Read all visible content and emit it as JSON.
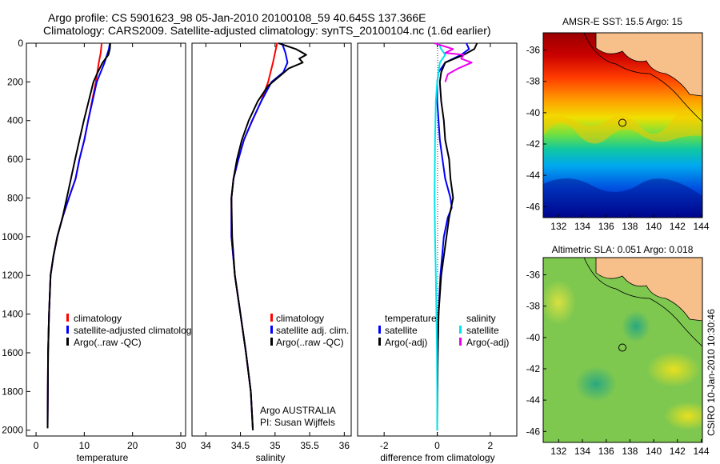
{
  "figure": {
    "title_line1": "Argo profile: CS 5901623_98 05-Jan-2010 20100108_59 40.645S 137.366E",
    "title_line2": "Climatology: CARS2009. Satellite-adjusted climatology: synTS_20100104.nc (1.6d earlier)",
    "side_caption": "CSIRO 10-Jan-2010 10:30:46",
    "credit_line1": "Argo AUSTRALIA",
    "credit_line2": "PI: Susan Wijffels"
  },
  "colors": {
    "climatology": "#ff0000",
    "satellite": "#0000ff",
    "argo": "#000000",
    "salinity_satellite": "#00e5ee",
    "salinity_argo": "#ee00ee",
    "land": "#f7c08a"
  },
  "chart_data": [
    {
      "type": "line",
      "id": "temperature",
      "title": "",
      "xlabel": "temperature",
      "ylabel": "",
      "xlim": [
        -2,
        31
      ],
      "ylim": [
        2030,
        0
      ],
      "y_reversed": true,
      "xticks": [
        0,
        10,
        20,
        30
      ],
      "yticks": [
        0,
        200,
        400,
        600,
        800,
        1000,
        1200,
        1400,
        1600,
        1800,
        2000
      ],
      "legend": [
        "climatology",
        "satellite-adjusted climatology",
        "Argo(..raw -QC)"
      ],
      "legend_position": "lower-right",
      "series": [
        {
          "name": "climatology",
          "color": "#ff0000",
          "x": [
            13.6,
            13.4,
            13.0,
            12.4,
            11.6,
            10.8,
            10.0,
            9.0,
            8.2,
            6.8,
            5.5,
            4.4,
            3.6,
            3.0,
            2.7,
            2.5,
            2.4
          ],
          "y": [
            0,
            50,
            100,
            200,
            300,
            400,
            500,
            600,
            700,
            800,
            900,
            1000,
            1100,
            1200,
            1400,
            1600,
            1950
          ]
        },
        {
          "name": "satellite-adjusted climatology",
          "color": "#0000ff",
          "x": [
            15.3,
            15.1,
            14.2,
            12.6,
            11.7,
            10.8,
            10.0,
            9.0,
            8.2,
            6.8,
            5.5,
            4.4,
            3.6,
            3.0,
            2.7,
            2.5,
            2.4
          ],
          "y": [
            0,
            30,
            100,
            200,
            300,
            400,
            500,
            600,
            700,
            800,
            900,
            1000,
            1100,
            1200,
            1400,
            1600,
            1990
          ]
        },
        {
          "name": "Argo(..raw -QC)",
          "color": "#000000",
          "x": [
            15.4,
            15.3,
            15.0,
            13.8,
            12.8,
            11.9,
            10.9,
            9.9,
            9.0,
            8.1,
            6.8,
            5.5,
            4.4,
            3.6,
            3.0,
            2.7,
            2.5,
            2.4
          ],
          "y": [
            0,
            30,
            60,
            100,
            150,
            200,
            300,
            400,
            500,
            600,
            750,
            900,
            1000,
            1100,
            1200,
            1400,
            1600,
            1990
          ]
        }
      ]
    },
    {
      "type": "line",
      "id": "salinity",
      "title": "",
      "xlabel": "salinity",
      "ylabel": "",
      "xlim": [
        33.8,
        36.1
      ],
      "ylim": [
        2030,
        0
      ],
      "y_reversed": true,
      "xticks": [
        34,
        34.5,
        35,
        35.5,
        36
      ],
      "xtick_labels": [
        "34",
        "34.5",
        "35",
        "35.5",
        "36"
      ],
      "legend": [
        "climatology",
        "satellite adj. clim.",
        "Argo(..raw -QC)"
      ],
      "legend_position": "lower-right",
      "series": [
        {
          "name": "climatology",
          "color": "#ff0000",
          "x": [
            35.03,
            35.0,
            34.97,
            34.9,
            34.8,
            34.67,
            34.55,
            34.47,
            34.4,
            34.37,
            34.37,
            34.42,
            34.5,
            34.58,
            34.65,
            34.68
          ],
          "y": [
            0,
            50,
            100,
            200,
            300,
            400,
            500,
            600,
            700,
            800,
            1000,
            1200,
            1400,
            1600,
            1800,
            2000
          ]
        },
        {
          "name": "satellite adj. clim.",
          "color": "#0000ff",
          "x": [
            35.1,
            35.15,
            35.18,
            35.12,
            34.95,
            34.8,
            34.67,
            34.55,
            34.47,
            34.4,
            34.37,
            34.37,
            34.42,
            34.5,
            34.58,
            34.65,
            34.68
          ],
          "y": [
            0,
            50,
            100,
            150,
            200,
            300,
            400,
            500,
            600,
            700,
            800,
            1000,
            1200,
            1400,
            1600,
            1800,
            2000
          ]
        },
        {
          "name": "Argo(..raw -QC)",
          "color": "#000000",
          "x": [
            35.05,
            35.3,
            35.45,
            35.35,
            35.4,
            35.2,
            35.1,
            34.9,
            34.75,
            34.62,
            34.52,
            34.45,
            34.4,
            34.37,
            34.38,
            34.42,
            34.5,
            34.58,
            34.65,
            34.68
          ],
          "y": [
            0,
            30,
            60,
            80,
            100,
            130,
            160,
            220,
            300,
            400,
            500,
            600,
            700,
            800,
            1000,
            1200,
            1400,
            1600,
            1800,
            2000
          ]
        }
      ]
    },
    {
      "type": "line",
      "id": "difference",
      "title": "",
      "xlabel": "difference from climatology",
      "ylabel": "",
      "xlim": [
        -3,
        3
      ],
      "ylim": [
        2030,
        0
      ],
      "y_reversed": true,
      "xticks": [
        -2,
        0,
        2
      ],
      "legend": [
        "temperature",
        "satellite",
        "Argo(-adj)",
        "salinity",
        "satellite",
        "Argo(-adj)"
      ],
      "legend_position": "lower-center",
      "series": [
        {
          "name": "satellite",
          "group": "temperature",
          "color": "#0000ff",
          "x": [
            1.1,
            1.2,
            0.9,
            0.3,
            0.05,
            0.0,
            0.0,
            0.05,
            0.1,
            0.2,
            0.3,
            0.5,
            0.55,
            0.4,
            0.25,
            0.12,
            0.05,
            0.02,
            0.0,
            0.0
          ],
          "y": [
            0,
            30,
            60,
            100,
            150,
            200,
            300,
            400,
            500,
            600,
            700,
            800,
            850,
            900,
            1000,
            1200,
            1400,
            1600,
            1800,
            2000
          ]
        },
        {
          "name": "Argo(-adj)",
          "group": "temperature",
          "color": "#000000",
          "x": [
            1.5,
            1.4,
            1.0,
            0.3,
            0.15,
            0.1,
            0.15,
            0.25,
            0.3,
            0.45,
            0.5,
            0.6,
            0.45,
            0.35,
            0.15,
            0.05,
            0.02,
            0.0
          ],
          "y": [
            0,
            30,
            60,
            100,
            150,
            200,
            300,
            400,
            500,
            600,
            700,
            800,
            900,
            1000,
            1200,
            1400,
            1600,
            2000
          ]
        },
        {
          "name": "satellite",
          "group": "salinity",
          "color": "#00e5ee",
          "x": [
            0.05,
            0.15,
            0.3,
            0.1,
            0.05,
            0.0,
            -0.05,
            -0.08,
            -0.1,
            -0.08,
            -0.05,
            -0.03,
            -0.01,
            0.0,
            0.0
          ],
          "y": [
            0,
            30,
            60,
            100,
            150,
            200,
            300,
            500,
            800,
            1000,
            1200,
            1400,
            1600,
            1800,
            2000
          ]
        },
        {
          "name": "Argo(-adj)",
          "group": "salinity",
          "color": "#ee00ee",
          "x": [
            -0.1,
            0.6,
            0.3,
            1.0,
            0.9,
            1.3,
            0.8,
            0.4,
            0.3
          ],
          "y": [
            0,
            30,
            50,
            60,
            80,
            100,
            130,
            160,
            200
          ]
        }
      ]
    }
  ],
  "maps": [
    {
      "id": "sst",
      "title": "AMSR-E SST: 15.5 Argo: 15",
      "xlim": [
        130.7,
        144.1
      ],
      "ylim": [
        -46.7,
        -34.9
      ],
      "xticks": [
        132,
        134,
        136,
        138,
        140,
        142,
        144
      ],
      "yticks": [
        -36,
        -38,
        -40,
        -42,
        -44,
        -46
      ],
      "argo_position": {
        "lon": 137.366,
        "lat": -40.645
      }
    },
    {
      "id": "sla",
      "title": "Altimetric SLA: 0.051 Argo: 0.018",
      "xlim": [
        130.7,
        144.1
      ],
      "ylim": [
        -46.7,
        -34.9
      ],
      "xticks": [
        132,
        134,
        136,
        138,
        140,
        142,
        144
      ],
      "yticks": [
        -36,
        -38,
        -40,
        -42,
        -44,
        -46
      ],
      "argo_position": {
        "lon": 137.366,
        "lat": -40.645
      }
    }
  ]
}
